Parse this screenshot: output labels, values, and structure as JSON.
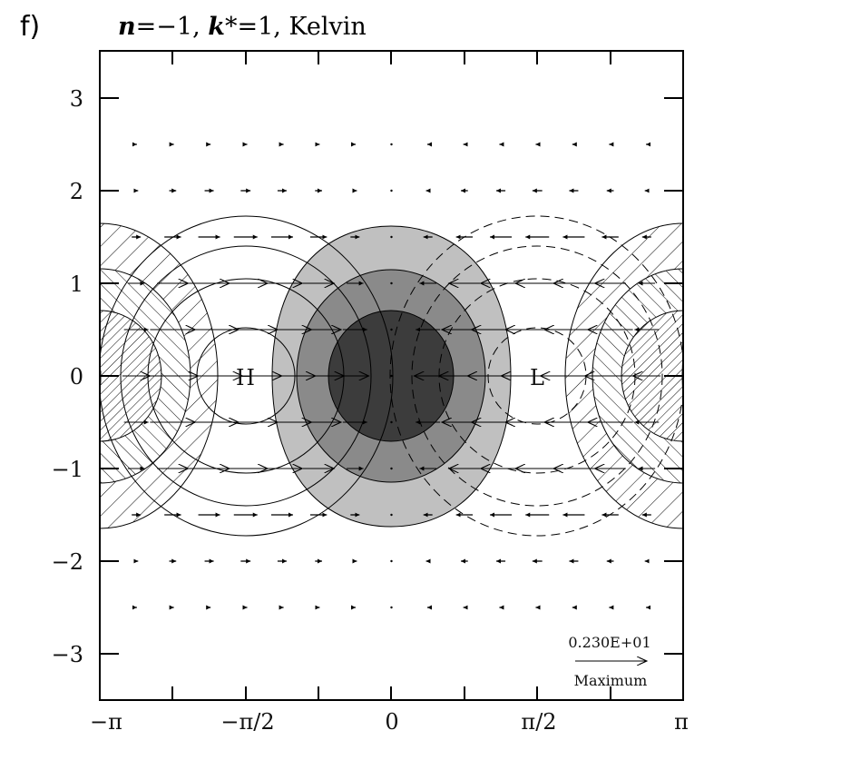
{
  "panel": {
    "label": "f)",
    "title_parts": {
      "n_sym": "n",
      "n_val": "=−1, ",
      "k_sym": "k",
      "k_val": "*=1, ",
      "name": "Kelvin"
    }
  },
  "chart_data": {
    "type": "vector-contour",
    "title": "n=-1, k*=1, Kelvin",
    "panel_label": "f)",
    "xlabel": "",
    "ylabel": "",
    "xlim": [
      -3.14159,
      3.14159
    ],
    "ylim": [
      -3.5,
      3.5
    ],
    "x_ticks": [
      {
        "value": -3.14159,
        "label": "−π"
      },
      {
        "value": -1.5708,
        "label": "−π/2"
      },
      {
        "value": 0,
        "label": "0"
      },
      {
        "value": 1.5708,
        "label": "π/2"
      },
      {
        "value": 3.14159,
        "label": "π"
      }
    ],
    "y_ticks": [
      {
        "value": 3,
        "label": "3"
      },
      {
        "value": 2,
        "label": "2"
      },
      {
        "value": 1,
        "label": "1"
      },
      {
        "value": 0,
        "label": "0"
      },
      {
        "value": -1,
        "label": "−1"
      },
      {
        "value": -2,
        "label": "−2"
      },
      {
        "value": -3,
        "label": "−3"
      }
    ],
    "annotations": [
      {
        "text": "H",
        "x": -1.5708,
        "y": 0,
        "meaning": "pressure high (solid contours)"
      },
      {
        "text": "L",
        "x": 1.5708,
        "y": 0,
        "meaning": "pressure low (dashed contours)"
      }
    ],
    "shaded_regions": [
      {
        "center_x": 0,
        "center_y": 0,
        "levels": 3,
        "colors": [
          "#c0c0c0",
          "#8a8a8a",
          "#3c3c3c"
        ],
        "meaning": "convergence/positive field"
      },
      {
        "center_x": 3.14159,
        "center_y": 0,
        "levels": 3,
        "style": "hatched",
        "wraps_periodic": true
      }
    ],
    "vector_reference": {
      "value": "0.230E+01",
      "label": "Maximum"
    },
    "wind_field": {
      "direction_west_half": "eastward",
      "direction_east_half": "westward",
      "rows_y": [
        2.5,
        2,
        1.5,
        1,
        0.5,
        0,
        -0.5,
        -1,
        -1.5,
        -2,
        -2.5
      ]
    }
  },
  "legend": {
    "ref_value": "0.230E+01",
    "ref_label": "Maximum"
  },
  "labels": {
    "high": "H",
    "low": "L"
  },
  "axis": {
    "x_labels": [
      "−π",
      "−π/2",
      "0",
      "π/2",
      "π"
    ],
    "y_labels": [
      "3",
      "2",
      "1",
      "0",
      "−1",
      "−2",
      "−3"
    ]
  },
  "colors": {
    "shade_light": "#c0c0c0",
    "shade_mid": "#8a8a8a",
    "shade_dark": "#3c3c3c",
    "ink": "#000000"
  }
}
